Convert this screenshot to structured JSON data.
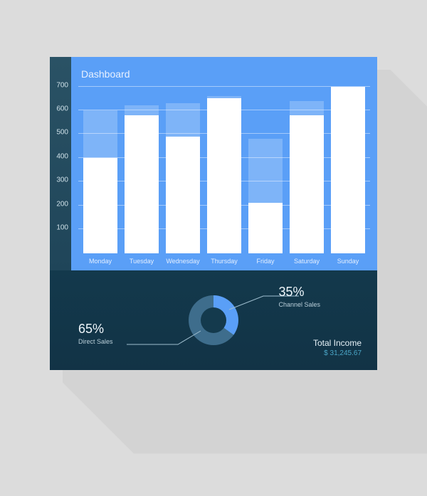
{
  "title": "Dashboard",
  "bar_chart": {
    "type": "bar",
    "y_max": 700,
    "y_ticks": [
      100,
      200,
      300,
      400,
      500,
      600,
      700
    ],
    "categories": [
      "Monday",
      "Tuesday",
      "Wednesday",
      "Thursday",
      "Friday",
      "Saturday",
      "Sunday"
    ],
    "fg_values": [
      400,
      580,
      490,
      650,
      210,
      580,
      700
    ],
    "bg_values": [
      600,
      620,
      630,
      660,
      480,
      640,
      700
    ],
    "colors": {
      "panel_bg": "#5a9ff7",
      "grid": "rgba(255,255,255,0.45)",
      "bar_fg": "#ffffff",
      "bar_bg": "rgba(255,255,255,0.22)",
      "axis_bg_top": "#2a5265",
      "axis_bg_bottom": "#1f4559",
      "tick_text": "#cfe1e9",
      "xlabel_text": "#e4efff",
      "title_text": "#e8f1ff"
    },
    "title_fontsize": 14,
    "tick_fontsize": 10,
    "xlabel_fontsize": 9
  },
  "donut": {
    "type": "pie",
    "slices": [
      {
        "label": "Direct Sales",
        "value": 65,
        "color": "#3e6d8c"
      },
      {
        "label": "Channel Sales",
        "value": 35,
        "color": "#5a9ff7"
      }
    ],
    "hole_color": "#143a4d",
    "callout_left_pct": "65%",
    "callout_left_lbl": "Direct Sales",
    "callout_right_pct": "35%",
    "callout_right_lbl": "Channel Sales"
  },
  "total": {
    "label": "Total Income",
    "value": "$  31,245.67",
    "label_color": "#e7f2f8",
    "value_color": "#4aa6c7"
  },
  "bottom_panel_bg_top": "#13394c",
  "bottom_panel_bg_bottom": "#123346",
  "page_bg": "#dcdcdc",
  "shadow_color": "#c9c9c9"
}
